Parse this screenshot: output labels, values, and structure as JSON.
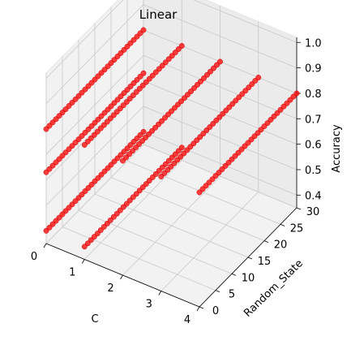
{
  "chart_data": {
    "type": "scatter",
    "projection": "3d",
    "title": "Linear",
    "xlabel": "C",
    "ylabel": "Random_State",
    "zlabel": "Accuracy",
    "xlim": [
      0,
      4
    ],
    "ylim": [
      0,
      30
    ],
    "zlim": [
      0.4,
      1.0
    ],
    "xticks": [
      "0",
      "1",
      "2",
      "3",
      "4"
    ],
    "yticks": [
      "0",
      "5",
      "10",
      "15",
      "20",
      "25",
      "30"
    ],
    "zticks": [
      "0.4",
      "0.5",
      "0.6",
      "0.7",
      "0.8",
      "0.9",
      "1.0"
    ],
    "grid": true,
    "marker_color": "#ff0000",
    "point_groups": [
      {
        "c": 0,
        "random_state_range": [
          0,
          30
        ],
        "accuracy": 0.4
      },
      {
        "c": 0,
        "random_state_range": [
          0,
          30
        ],
        "accuracy": 0.63
      },
      {
        "c": 0,
        "random_state_range": [
          0,
          30
        ],
        "accuracy": 0.8
      },
      {
        "c": 1,
        "random_state_range": [
          0,
          30
        ],
        "accuracy": 0.4
      },
      {
        "c": 1,
        "random_state_range": [
          0,
          30
        ],
        "accuracy": 0.8
      },
      {
        "c": 2,
        "random_state_range": [
          0,
          30
        ],
        "accuracy": 0.8
      },
      {
        "c": 3,
        "random_state_range": [
          0,
          30
        ],
        "accuracy": 0.8
      },
      {
        "c": 4,
        "random_state_range": [
          0,
          30
        ],
        "accuracy": 0.8
      }
    ]
  }
}
